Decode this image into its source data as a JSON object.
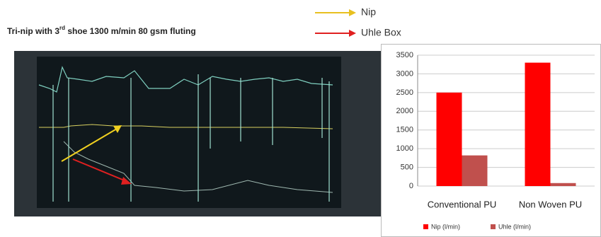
{
  "header": {
    "title_parts": [
      "Tri-nip with 3",
      "rd",
      " shoe 1300 m/min 80 gsm fluting"
    ],
    "arrow_labels": [
      "Nip",
      "Uhle Box"
    ]
  },
  "chart_data": {
    "type": "bar",
    "categories": [
      "Conventional PU",
      "Non Woven PU"
    ],
    "series": [
      {
        "name": "Nip (l/min)",
        "color": "#ff0000",
        "values": [
          2500,
          3300
        ]
      },
      {
        "name": "Uhle (l/min)",
        "color": "#c0504d",
        "values": [
          820,
          80
        ]
      }
    ],
    "ylim": [
      0,
      3500
    ],
    "yticks": [
      0,
      500,
      1000,
      1500,
      2000,
      2500,
      3000,
      3500
    ],
    "grid": true
  }
}
